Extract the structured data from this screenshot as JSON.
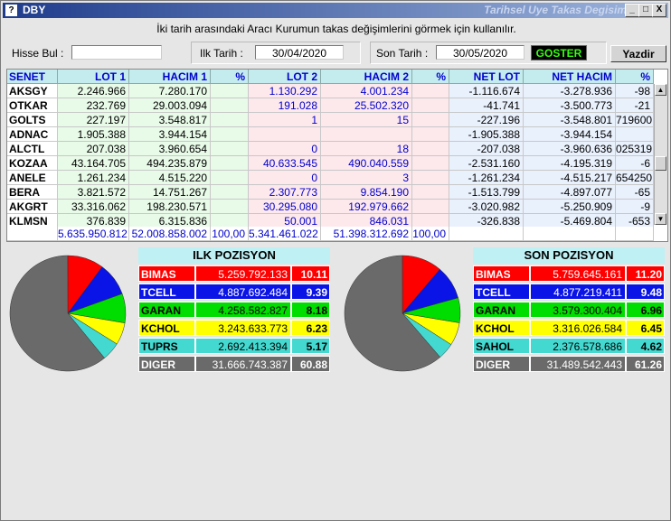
{
  "window": {
    "title": "DBY",
    "subtitle": "Tarihsel Uye Takas Degisim",
    "minimize": "_",
    "maximize": "□",
    "close": "X"
  },
  "info_text": "İki tarih arasındaki  Aracı Kurumun takas değişimlerini görmek için kullanılır.",
  "form": {
    "hisse_label": "Hisse Bul :",
    "hisse_value": "",
    "ilk_label": "Ilk Tarih :",
    "ilk_value": "30/04/2020",
    "son_label": "Son Tarih :",
    "son_value": "30/05/2020",
    "goster": "GOSTER",
    "yazdir": "Yazdir"
  },
  "table": {
    "headers": [
      "SENET",
      "LOT 1",
      "HACIM 1",
      "%",
      "LOT 2",
      "HACIM 2",
      "%",
      "NET LOT",
      "NET HACIM",
      "%"
    ],
    "rows": [
      [
        "AKSGY",
        "2.246.966",
        "7.280.170",
        "",
        "1.130.292",
        "4.001.234",
        "",
        "-1.116.674",
        "-3.278.936",
        "-98"
      ],
      [
        "OTKAR",
        "232.769",
        "29.003.094",
        "",
        "191.028",
        "25.502.320",
        "",
        "-41.741",
        "-3.500.773",
        "-21"
      ],
      [
        "GOLTS",
        "227.197",
        "3.548.817",
        "",
        "1",
        "15",
        "",
        "-227.196",
        "-3.548.801",
        "719600"
      ],
      [
        "ADNAC",
        "1.905.388",
        "3.944.154",
        "",
        "",
        "",
        "",
        "-1.905.388",
        "-3.944.154",
        ""
      ],
      [
        "ALCTL",
        "207.038",
        "3.960.654",
        "",
        "0",
        "18",
        "",
        "-207.038",
        "-3.960.636",
        "025319"
      ],
      [
        "KOZAA",
        "43.164.705",
        "494.235.879",
        "",
        "40.633.545",
        "490.040.559",
        "",
        "-2.531.160",
        "-4.195.319",
        "-6"
      ],
      [
        "ANELE",
        "1.261.234",
        "4.515.220",
        "",
        "0",
        "3",
        "",
        "-1.261.234",
        "-4.515.217",
        "654250"
      ],
      [
        "BERA",
        "3.821.572",
        "14.751.267",
        "",
        "2.307.773",
        "9.854.190",
        "",
        "-1.513.799",
        "-4.897.077",
        "-65"
      ],
      [
        "AKGRT",
        "33.316.062",
        "198.230.571",
        "",
        "30.295.080",
        "192.979.662",
        "",
        "-3.020.982",
        "-5.250.909",
        "-9"
      ],
      [
        "KLMSN",
        "376.839",
        "6.315.836",
        "",
        "50.001",
        "846.031",
        "",
        "-326.838",
        "-5.469.804",
        "-653"
      ]
    ],
    "totals": [
      "",
      "5.635.950.812",
      "52.008.858.002",
      "100,00",
      "5.341.461.022",
      "51.398.312.692",
      "100,00",
      "",
      "",
      ""
    ]
  },
  "ilk_pozisyon": {
    "title": "ILK POZISYON",
    "items": [
      {
        "name": "BIMAS",
        "value": "5.259.792.133",
        "pct": "10.11",
        "share": 10.11,
        "color": "#ff0000",
        "text": "#ffffff"
      },
      {
        "name": "TCELL",
        "value": "4.887.692.484",
        "pct": "9.39",
        "share": 9.39,
        "color": "#0a14e6",
        "text": "#ffffff"
      },
      {
        "name": "GARAN",
        "value": "4.258.582.827",
        "pct": "8.18",
        "share": 8.18,
        "color": "#00dd00",
        "text": "#000000"
      },
      {
        "name": "KCHOL",
        "value": "3.243.633.773",
        "pct": "6.23",
        "share": 6.23,
        "color": "#ffff00",
        "text": "#000000"
      },
      {
        "name": "TUPRS",
        "value": "2.692.413.394",
        "pct": "5.17",
        "share": 5.17,
        "color": "#44d9d0",
        "text": "#000000"
      },
      {
        "name": "DIGER",
        "value": "31.666.743.387",
        "pct": "60.88",
        "share": 60.88,
        "color": "#6a6a6a",
        "text": "#ffffff"
      }
    ]
  },
  "son_pozisyon": {
    "title": "SON POZISYON",
    "items": [
      {
        "name": "BIMAS",
        "value": "5.759.645.161",
        "pct": "11.20",
        "share": 11.2,
        "color": "#ff0000",
        "text": "#ffffff"
      },
      {
        "name": "TCELL",
        "value": "4.877.219.411",
        "pct": "9.48",
        "share": 9.48,
        "color": "#0a14e6",
        "text": "#ffffff"
      },
      {
        "name": "GARAN",
        "value": "3.579.300.404",
        "pct": "6.96",
        "share": 6.96,
        "color": "#00dd00",
        "text": "#000000"
      },
      {
        "name": "KCHOL",
        "value": "3.316.026.584",
        "pct": "6.45",
        "share": 6.45,
        "color": "#ffff00",
        "text": "#000000"
      },
      {
        "name": "SAHOL",
        "value": "2.376.578.686",
        "pct": "4.62",
        "share": 4.62,
        "color": "#44d9d0",
        "text": "#000000"
      },
      {
        "name": "DIGER",
        "value": "31.489.542.443",
        "pct": "61.26",
        "share": 61.26,
        "color": "#6a6a6a",
        "text": "#ffffff"
      }
    ]
  }
}
